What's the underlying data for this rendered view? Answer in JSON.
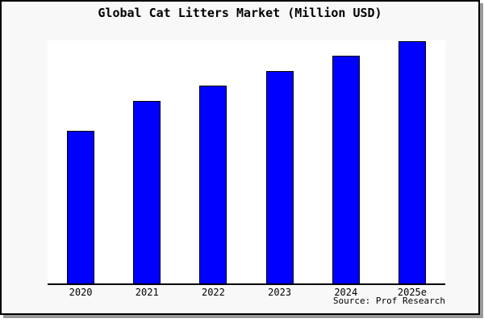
{
  "page": {
    "background_color": "#f8f8f8",
    "plot_background_color": "#ffffff",
    "frame_border_color": "#000000",
    "frame_shadow_color": "#999999"
  },
  "chart_data": {
    "type": "bar",
    "title": "Global Cat Litters Market (Million USD)",
    "categories": [
      "2020",
      "2021",
      "2022",
      "2023",
      "2024",
      "2025e"
    ],
    "values": [
      63,
      75.4,
      81.7,
      87.6,
      94,
      100
    ],
    "value_scale": "relative-percent-of-2025e-bar (no y-axis or value labels shown)",
    "ylim": [
      0,
      100.3
    ],
    "xlabel": "",
    "ylabel": "",
    "grid": false,
    "y_axis_shown": false,
    "legend": "none",
    "bar_color": "#0000ff",
    "bar_edge_color": "#000000",
    "source": "Source: Prof Research"
  }
}
